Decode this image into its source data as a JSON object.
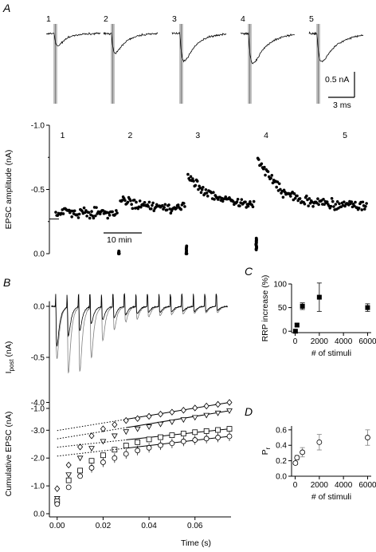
{
  "panels": {
    "A": "A",
    "B": "B",
    "C": "C",
    "D": "D"
  },
  "colors": {
    "ink": "#000000",
    "trace_gray": "#808080"
  },
  "chart_data": [
    {
      "id": "A-traces",
      "type": "line",
      "trace_labels": [
        "1",
        "2",
        "3",
        "4",
        "5"
      ],
      "trace_peaks_nA": [
        0.3,
        0.45,
        0.6,
        0.62,
        0.56
      ],
      "scalebar": {
        "amplitude_label": "0.5 nA",
        "time_label": "3 ms"
      }
    },
    {
      "id": "A-timecourse",
      "type": "scatter",
      "ylabel": "EPSC amplitude (nA)",
      "ylim": [
        -1.0,
        0.0
      ],
      "yticks": [
        "0.0",
        "-0.5",
        "-1.0"
      ],
      "x_units": "min",
      "xlim": [
        0,
        42
      ],
      "scalebar_label": "10 min",
      "segment_labels": [
        "1",
        "2",
        "3",
        "4",
        "5"
      ],
      "baseline": -0.27,
      "segments": [
        {
          "label": "1",
          "x_start": 0,
          "x_end": 8.3,
          "start": -0.32,
          "end": -0.32,
          "recovery_tau": 1
        },
        {
          "label": "2",
          "x_start": 8.6,
          "x_end": 17.3,
          "start": -0.42,
          "end": -0.36,
          "recovery_tau": 3
        },
        {
          "label": "3",
          "x_start": 17.6,
          "x_end": 26.5,
          "start": -0.62,
          "end": -0.38,
          "recovery_tau": 3
        },
        {
          "label": "4",
          "x_start": 26.9,
          "x_end": 41.5,
          "start": -0.75,
          "end": -0.37,
          "recovery_tau": 5
        }
      ],
      "train_markers": [
        {
          "label": "2",
          "x": 8.4,
          "min": -0.02,
          "max": 0.08
        },
        {
          "label": "3",
          "x": 17.4,
          "min": -0.06,
          "max": 0.08
        },
        {
          "label": "4",
          "x": 26.7,
          "min": -0.12,
          "max": -0.03
        }
      ]
    },
    {
      "id": "B-ipost",
      "type": "line",
      "ylabel": "I",
      "ylabel_sub": "post",
      "ylabel_unit": " (nA)",
      "ylim": [
        -1.0,
        0.0
      ],
      "yticks": [
        "0.0",
        "-0.5",
        "-1.0"
      ],
      "x_units": "s",
      "xlim": [
        0,
        0.075
      ],
      "stimulus_interval_s": 0.005,
      "n_stimuli": 15,
      "black_peaks": [
        -0.57,
        -0.42,
        -0.34,
        -0.24,
        -0.19,
        -0.16,
        -0.12,
        -0.1,
        -0.08,
        -0.08,
        -0.08,
        -0.07,
        -0.07,
        -0.07,
        -0.06
      ],
      "gray_peaks": [
        -0.76,
        -0.95,
        -0.92,
        -0.73,
        -0.48,
        -0.33,
        -0.22,
        -0.18,
        -0.15,
        -0.13,
        -0.12,
        -0.11,
        -0.1,
        -0.09,
        -0.09
      ]
    },
    {
      "id": "B-cumulative",
      "type": "scatter",
      "xlabel": "Time (s)",
      "ylabel": "Cumulative EPSC (nA)",
      "xlim": [
        -0.002,
        0.075
      ],
      "ylim": [
        0,
        -4.3
      ],
      "yticks": [
        "0.0",
        "-1.0",
        "-2.0",
        "-3.0",
        "-4.0"
      ],
      "xticks": [
        "0.00",
        "0.02",
        "0.04",
        "0.06"
      ],
      "series": [
        {
          "marker": "diamond",
          "x": [
            0,
            0.005,
            0.01,
            0.015,
            0.02,
            0.025,
            0.03,
            0.035,
            0.04,
            0.045,
            0.05,
            0.055,
            0.06,
            0.065,
            0.07,
            0.075
          ],
          "y": [
            -0.9,
            -1.75,
            -2.4,
            -2.8,
            -3.05,
            -3.2,
            -3.35,
            -3.42,
            -3.5,
            -3.58,
            -3.65,
            -3.72,
            -3.8,
            -3.87,
            -3.93,
            -4.0
          ],
          "fit": [
            -2.99,
            -4.0
          ]
        },
        {
          "marker": "triangle",
          "x": [
            0,
            0.005,
            0.01,
            0.015,
            0.02,
            0.025,
            0.03,
            0.035,
            0.04,
            0.045,
            0.05,
            0.055,
            0.06,
            0.065,
            0.07,
            0.075
          ],
          "y": [
            -0.55,
            -1.4,
            -2.0,
            -2.35,
            -2.6,
            -2.8,
            -2.95,
            -3.05,
            -3.13,
            -3.22,
            -3.3,
            -3.38,
            -3.46,
            -3.54,
            -3.62,
            -3.7
          ],
          "fit": [
            -2.69,
            -3.7
          ]
        },
        {
          "marker": "square",
          "x": [
            0,
            0.005,
            0.01,
            0.015,
            0.02,
            0.025,
            0.03,
            0.035,
            0.04,
            0.045,
            0.05,
            0.055,
            0.06,
            0.065,
            0.07,
            0.075
          ],
          "y": [
            -0.45,
            -1.2,
            -1.55,
            -1.9,
            -2.1,
            -2.3,
            -2.45,
            -2.57,
            -2.67,
            -2.75,
            -2.82,
            -2.88,
            -2.93,
            -2.97,
            -3.01,
            -3.05
          ],
          "fit": [
            -2.39,
            -3.05
          ]
        },
        {
          "marker": "circle",
          "x": [
            0,
            0.005,
            0.01,
            0.015,
            0.02,
            0.025,
            0.03,
            0.035,
            0.04,
            0.045,
            0.05,
            0.055,
            0.06,
            0.065,
            0.07,
            0.075
          ],
          "y": [
            -0.35,
            -0.95,
            -1.35,
            -1.65,
            -1.85,
            -2.0,
            -2.15,
            -2.27,
            -2.37,
            -2.46,
            -2.53,
            -2.6,
            -2.65,
            -2.7,
            -2.74,
            -2.78
          ],
          "fit": [
            -2.07,
            -2.78
          ]
        }
      ]
    },
    {
      "id": "C",
      "type": "scatter",
      "xlabel": "# of stimuli",
      "ylabel": "RRP increase (%)",
      "xlim": [
        -300,
        6300
      ],
      "ylim": [
        -3,
        100
      ],
      "xticks": [
        "0",
        "2000",
        "4000",
        "6000"
      ],
      "yticks": [
        "0",
        "50",
        "100"
      ],
      "points": [
        {
          "x": 20,
          "y": 0,
          "err": 0
        },
        {
          "x": 150,
          "y": 13,
          "err": 3
        },
        {
          "x": 600,
          "y": 53,
          "err": 7
        },
        {
          "x": 2000,
          "y": 72,
          "err": 30
        },
        {
          "x": 6000,
          "y": 50,
          "err": 8
        }
      ]
    },
    {
      "id": "D",
      "type": "scatter",
      "xlabel": "# of stimuli",
      "ylabel": "P",
      "ylabel_sub": "r",
      "xlim": [
        -300,
        6300
      ],
      "ylim": [
        0,
        0.65
      ],
      "xticks": [
        "0",
        "2000",
        "4000",
        "6000"
      ],
      "yticks": [
        "0.0",
        "0.2",
        "0.4",
        "0.6"
      ],
      "points": [
        {
          "x": 20,
          "y": 0.17,
          "err": 0.02
        },
        {
          "x": 150,
          "y": 0.24,
          "err": 0.03
        },
        {
          "x": 600,
          "y": 0.31,
          "err": 0.06
        },
        {
          "x": 2000,
          "y": 0.44,
          "err": 0.1
        },
        {
          "x": 6000,
          "y": 0.5,
          "err": 0.1
        }
      ]
    }
  ]
}
